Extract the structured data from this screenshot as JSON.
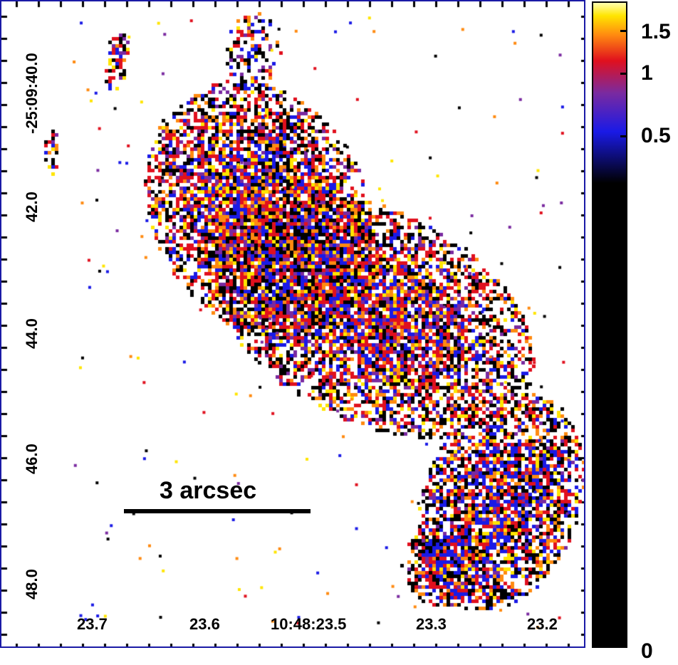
{
  "image": {
    "description_domain": "astronomical intensity map",
    "colors": {
      "black": "#000000",
      "blue": "#1a1ae6",
      "purple": "#7a2aa0",
      "red": "#e0101e",
      "orange": "#ff8a10",
      "yellow": "#ffe500",
      "frame": "#1a1aa6"
    }
  },
  "y_axis": {
    "ticks": [
      "-25:09:40.0",
      "42.0",
      "44.0",
      "46.0",
      "48.0"
    ]
  },
  "x_axis": {
    "ticks": [
      "23.7",
      "23.6",
      "10:48:23.5",
      "23.3",
      "23.2"
    ]
  },
  "scalebar": {
    "label": "3 arcsec"
  },
  "colorbar": {
    "labels": [
      "1.5",
      "1",
      "0.5",
      "0"
    ]
  }
}
